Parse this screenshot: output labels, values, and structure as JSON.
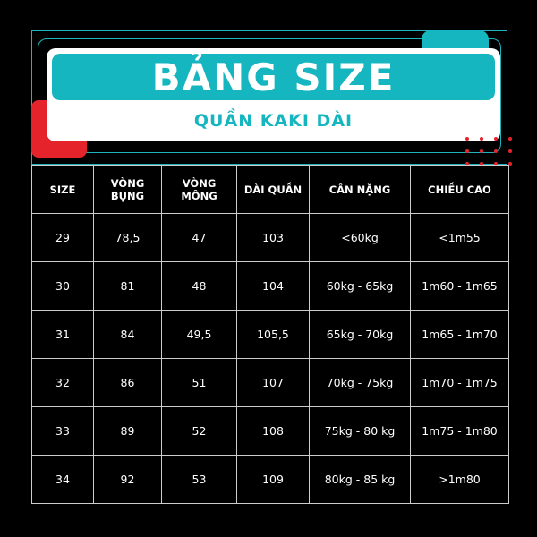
{
  "title": "BẢNG SIZE",
  "subtitle": "QUẦN KAKI DÀI",
  "colors": {
    "accent": "#16b6c0",
    "red": "#e5232b",
    "background": "#000000"
  },
  "table": {
    "headers": [
      "SIZE",
      "VÒNG BỤNG",
      "VÒNG MÔNG",
      "DÀI QUẦN",
      "CÂN NẶNG",
      "CHIỀU CAO"
    ],
    "rows": [
      [
        "29",
        "78,5",
        "47",
        "103",
        "<60kg",
        "<1m55"
      ],
      [
        "30",
        "81",
        "48",
        "104",
        "60kg - 65kg",
        "1m60 - 1m65"
      ],
      [
        "31",
        "84",
        "49,5",
        "105,5",
        "65kg - 70kg",
        "1m65 - 1m70"
      ],
      [
        "32",
        "86",
        "51",
        "107",
        "70kg - 75kg",
        "1m70 - 1m75"
      ],
      [
        "33",
        "89",
        "52",
        "108",
        "75kg - 80 kg",
        "1m75 - 1m80"
      ],
      [
        "34",
        "92",
        "53",
        "109",
        "80kg - 85 kg",
        ">1m80"
      ]
    ]
  }
}
